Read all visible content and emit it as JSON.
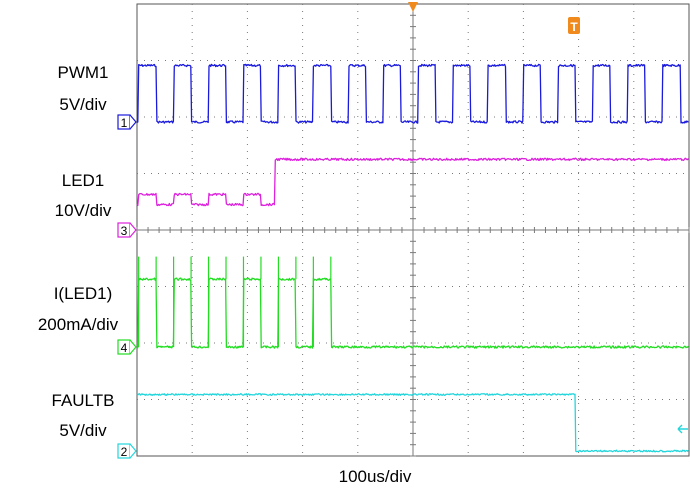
{
  "chart_data": {
    "type": "line",
    "title": "",
    "xlabel": "100us/div",
    "ylabel": "",
    "grid": true,
    "time_per_div_us": 100,
    "h_divisions": 10,
    "v_divisions": 8,
    "x_range_us": [
      -500,
      500
    ],
    "series": [
      {
        "name": "PWM1",
        "scale": "5V/div",
        "channel": "1",
        "color": "#1a1adc",
        "kind": "square",
        "period_us": 63.3,
        "duty": 0.5,
        "t_first_rise_us": -497,
        "t_end_us": 500,
        "low_level_div": 0,
        "high_level_div": 1.0
      },
      {
        "name": "LED1",
        "scale": "10V/div",
        "channel": "3",
        "color": "#dd22dd",
        "kind": "pulsed_then_step",
        "period_us": 63.3,
        "duty": 0.5,
        "t_first_rise_us": -497,
        "t_step_us": -250,
        "low_level_div": 0.45,
        "high_level_div": 0.63,
        "final_level_div": 1.25
      },
      {
        "name": "I(LED1)",
        "scale": "200mA/div",
        "channel": "4",
        "color": "#22dd22",
        "kind": "pulsed_then_zero",
        "period_us": 63.3,
        "duty": 0.5,
        "t_first_rise_us": -497,
        "pulse_count": 6,
        "low_level_div": 0,
        "high_level_div": 1.2,
        "spike_div": 1.6
      },
      {
        "name": "FAULTB",
        "scale": "5V/div",
        "channel": "2",
        "color": "#22d6dc",
        "kind": "high_then_low",
        "t_fall_us": 295,
        "low_level_div": 0,
        "high_level_div": 1.0
      }
    ],
    "markers": {
      "trigger_time_us": 0,
      "trigger_symbol": "T"
    }
  },
  "labels": {
    "pwm": {
      "name": "PWM1",
      "scale": "5V/div"
    },
    "led": {
      "name": "LED1",
      "scale": "10V/div"
    },
    "iled": {
      "name": "I(LED1)",
      "scale": "200mA/div"
    },
    "fault": {
      "name": "FAULTB",
      "scale": "5V/div"
    },
    "time": "100us/div"
  },
  "colors": {
    "grid": "#7a7a7a",
    "trigger": "#f08a1c"
  }
}
